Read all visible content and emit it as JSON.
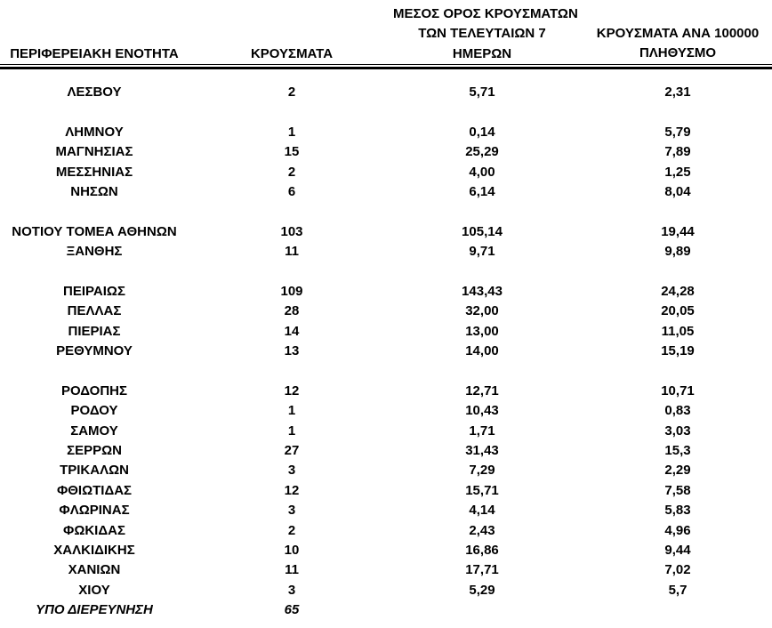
{
  "page": {
    "background_color": "#ffffff",
    "text_color": "#000000"
  },
  "table": {
    "header": {
      "col1": "ΠΕΡΙΦΕΡΕΙΑΚΗ ΕΝΟΤΗΤΑ",
      "col2": "ΚΡΟΥΣΜΑΤΑ",
      "col3_lines": [
        "ΜΕΣΟΣ ΟΡΟΣ ΚΡΟΥΣΜΑΤΩΝ",
        "ΤΩΝ ΤΕΛΕΥΤΑΙΩΝ 7",
        "ΗΜΕΡΩΝ"
      ],
      "col4_lines": [
        "ΚΡΟΥΣΜΑΤΑ ΑΝΑ 100000",
        "ΠΛΗΘΥΣΜΟ"
      ]
    },
    "groups": [
      [
        {
          "name": "ΛΕΣΒΟΥ",
          "cases": "2",
          "avg7": "5,71",
          "per100k": "2,31"
        }
      ],
      [
        {
          "name": "ΛΗΜΝΟΥ",
          "cases": "1",
          "avg7": "0,14",
          "per100k": "5,79"
        },
        {
          "name": "ΜΑΓΝΗΣΙΑΣ",
          "cases": "15",
          "avg7": "25,29",
          "per100k": "7,89"
        },
        {
          "name": "ΜΕΣΣΗΝΙΑΣ",
          "cases": "2",
          "avg7": "4,00",
          "per100k": "1,25"
        },
        {
          "name": "ΝΗΣΩΝ",
          "cases": "6",
          "avg7": "6,14",
          "per100k": "8,04"
        }
      ],
      [
        {
          "name": "ΝΟΤΙΟΥ ΤΟΜΕΑ ΑΘΗΝΩΝ",
          "cases": "103",
          "avg7": "105,14",
          "per100k": "19,44"
        },
        {
          "name": "ΞΑΝΘΗΣ",
          "cases": "11",
          "avg7": "9,71",
          "per100k": "9,89"
        }
      ],
      [
        {
          "name": "ΠΕΙΡΑΙΩΣ",
          "cases": "109",
          "avg7": "143,43",
          "per100k": "24,28"
        },
        {
          "name": "ΠΕΛΛΑΣ",
          "cases": "28",
          "avg7": "32,00",
          "per100k": "20,05"
        },
        {
          "name": "ΠΙΕΡΙΑΣ",
          "cases": "14",
          "avg7": "13,00",
          "per100k": "11,05"
        },
        {
          "name": "ΡΕΘΥΜΝΟΥ",
          "cases": "13",
          "avg7": "14,00",
          "per100k": "15,19"
        }
      ],
      [
        {
          "name": "ΡΟΔΟΠΗΣ",
          "cases": "12",
          "avg7": "12,71",
          "per100k": "10,71"
        },
        {
          "name": "ΡΟΔΟΥ",
          "cases": "1",
          "avg7": "10,43",
          "per100k": "0,83"
        },
        {
          "name": "ΣΑΜΟΥ",
          "cases": "1",
          "avg7": "1,71",
          "per100k": "3,03"
        },
        {
          "name": "ΣΕΡΡΩΝ",
          "cases": "27",
          "avg7": "31,43",
          "per100k": "15,3"
        },
        {
          "name": "ΤΡΙΚΑΛΩΝ",
          "cases": "3",
          "avg7": "7,29",
          "per100k": "2,29"
        },
        {
          "name": "ΦΘΙΩΤΙΔΑΣ",
          "cases": "12",
          "avg7": "15,71",
          "per100k": "7,58"
        },
        {
          "name": "ΦΛΩΡΙΝΑΣ",
          "cases": "3",
          "avg7": "4,14",
          "per100k": "5,83"
        },
        {
          "name": "ΦΩΚΙΔΑΣ",
          "cases": "2",
          "avg7": "2,43",
          "per100k": "4,96"
        },
        {
          "name": "ΧΑΛΚΙΔΙΚΗΣ",
          "cases": "10",
          "avg7": "16,86",
          "per100k": "9,44"
        },
        {
          "name": "ΧΑΝΙΩΝ",
          "cases": "11",
          "avg7": "17,71",
          "per100k": "7,02"
        },
        {
          "name": "ΧΙΟΥ",
          "cases": "3",
          "avg7": "5,29",
          "per100k": "5,7"
        },
        {
          "name": "ΥΠΟ ΔΙΕΡΕΥΝΗΣΗ",
          "cases": "65",
          "avg7": "",
          "per100k": "",
          "italic": true
        }
      ]
    ]
  }
}
